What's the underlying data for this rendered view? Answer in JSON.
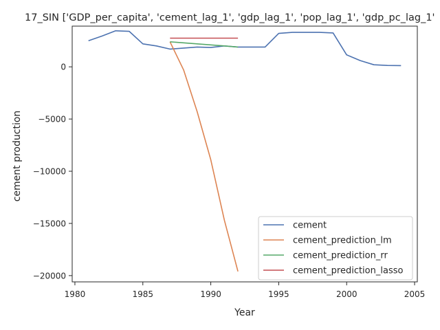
{
  "chart_data": {
    "type": "line",
    "title": "17_SIN ['GDP_per_capita', 'cement_lag_1', 'gdp_lag_1', 'pop_lag_1', 'gdp_pc_lag_1'",
    "xlabel": "Year",
    "ylabel": "cement production",
    "xlim": [
      1979.8,
      2005.2
    ],
    "ylim": [
      -20600,
      3900
    ],
    "xticks": [
      1980,
      1985,
      1990,
      1995,
      2000,
      2005
    ],
    "yticks": [
      0,
      -5000,
      -10000,
      -15000,
      -20000
    ],
    "xtick_labels": [
      "1980",
      "1985",
      "1990",
      "1995",
      "2000",
      "2005"
    ],
    "ytick_labels": [
      "0",
      "−5000",
      "−10000",
      "−15000",
      "−20000"
    ],
    "grid": false,
    "legend_position": "lower-right",
    "series": [
      {
        "name": "cement",
        "color": "#4c72b0",
        "x": [
          1981,
          1982,
          1983,
          1984,
          1985,
          1986,
          1987,
          1988,
          1989,
          1990,
          1991,
          1992,
          1993,
          1994,
          1995,
          1996,
          1997,
          1998,
          1999,
          2000,
          2001,
          2002,
          2003,
          2004
        ],
        "y": [
          2500,
          2950,
          3450,
          3400,
          2200,
          2000,
          1700,
          1800,
          1900,
          1850,
          2000,
          1900,
          1900,
          1900,
          3200,
          3300,
          3300,
          3300,
          3250,
          1150,
          600,
          200,
          130,
          120
        ]
      },
      {
        "name": "cement_prediction_lm",
        "color": "#dd8452",
        "x": [
          1987,
          1988,
          1989,
          1990,
          1991,
          1992
        ],
        "y": [
          2400,
          -300,
          -4300,
          -8900,
          -14700,
          -19600
        ]
      },
      {
        "name": "cement_prediction_rr",
        "color": "#55a868",
        "x": [
          1987,
          1988,
          1989,
          1990,
          1991,
          1992
        ],
        "y": [
          2400,
          2300,
          2200,
          2100,
          2000,
          1900
        ]
      },
      {
        "name": "cement_prediction_lasso",
        "color": "#c44e52",
        "x": [
          1987,
          1988,
          1989,
          1990,
          1991,
          1992
        ],
        "y": [
          2750,
          2750,
          2750,
          2750,
          2750,
          2750
        ]
      }
    ]
  }
}
